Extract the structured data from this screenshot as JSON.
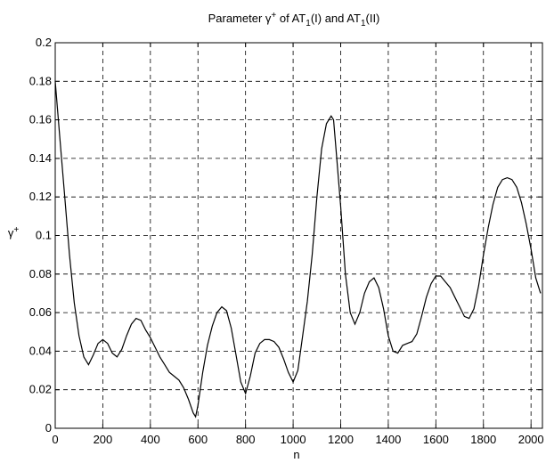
{
  "chart_data": {
    "type": "line",
    "title": {
      "prefix": "Parameter ",
      "symbol": "γ",
      "symbol_sup": "+",
      "middle": " of AT",
      "sub1": "1",
      "mid2": "(I) and AT",
      "sub2": "1",
      "suffix": "(II)"
    },
    "xlabel": "n",
    "ylabel": {
      "symbol": "γ",
      "sup": "+"
    },
    "xlim": [
      0,
      2048
    ],
    "ylim": [
      0,
      0.2
    ],
    "xticks": [
      0,
      200,
      400,
      600,
      800,
      1000,
      1200,
      1400,
      1600,
      1800,
      2000
    ],
    "yticks": [
      0,
      0.02,
      0.04,
      0.06,
      0.08,
      0.1,
      0.12,
      0.14,
      0.16,
      0.18,
      0.2
    ],
    "xtick_labels": [
      "0",
      "200",
      "400",
      "600",
      "800",
      "1000",
      "1200",
      "1400",
      "1600",
      "1800",
      "2000"
    ],
    "ytick_labels": [
      "0",
      "0.02",
      "0.04",
      "0.06",
      "0.08",
      "0.1",
      "0.12",
      "0.14",
      "0.16",
      "0.18",
      "0.2"
    ],
    "grid": true,
    "series": [
      {
        "points": [
          [
            0,
            0.18
          ],
          [
            20,
            0.15
          ],
          [
            40,
            0.12
          ],
          [
            60,
            0.09
          ],
          [
            80,
            0.065
          ],
          [
            100,
            0.048
          ],
          [
            120,
            0.037
          ],
          [
            140,
            0.033
          ],
          [
            160,
            0.038
          ],
          [
            180,
            0.044
          ],
          [
            200,
            0.046
          ],
          [
            220,
            0.044
          ],
          [
            240,
            0.039
          ],
          [
            260,
            0.037
          ],
          [
            280,
            0.041
          ],
          [
            300,
            0.048
          ],
          [
            320,
            0.054
          ],
          [
            340,
            0.057
          ],
          [
            360,
            0.056
          ],
          [
            380,
            0.051
          ],
          [
            400,
            0.047
          ],
          [
            420,
            0.042
          ],
          [
            440,
            0.037
          ],
          [
            460,
            0.033
          ],
          [
            480,
            0.029
          ],
          [
            500,
            0.027
          ],
          [
            520,
            0.025
          ],
          [
            540,
            0.021
          ],
          [
            560,
            0.015
          ],
          [
            580,
            0.008
          ],
          [
            590,
            0.006
          ],
          [
            600,
            0.012
          ],
          [
            620,
            0.029
          ],
          [
            640,
            0.043
          ],
          [
            660,
            0.053
          ],
          [
            680,
            0.06
          ],
          [
            700,
            0.063
          ],
          [
            720,
            0.061
          ],
          [
            740,
            0.052
          ],
          [
            760,
            0.038
          ],
          [
            780,
            0.024
          ],
          [
            800,
            0.018
          ],
          [
            820,
            0.027
          ],
          [
            840,
            0.039
          ],
          [
            860,
            0.044
          ],
          [
            880,
            0.046
          ],
          [
            900,
            0.046
          ],
          [
            920,
            0.045
          ],
          [
            940,
            0.042
          ],
          [
            960,
            0.036
          ],
          [
            980,
            0.029
          ],
          [
            1000,
            0.024
          ],
          [
            1020,
            0.03
          ],
          [
            1040,
            0.048
          ],
          [
            1060,
            0.066
          ],
          [
            1080,
            0.09
          ],
          [
            1100,
            0.12
          ],
          [
            1120,
            0.145
          ],
          [
            1140,
            0.158
          ],
          [
            1160,
            0.162
          ],
          [
            1170,
            0.16
          ],
          [
            1180,
            0.145
          ],
          [
            1200,
            0.115
          ],
          [
            1220,
            0.08
          ],
          [
            1240,
            0.06
          ],
          [
            1260,
            0.054
          ],
          [
            1280,
            0.06
          ],
          [
            1300,
            0.07
          ],
          [
            1320,
            0.076
          ],
          [
            1340,
            0.078
          ],
          [
            1360,
            0.073
          ],
          [
            1380,
            0.062
          ],
          [
            1400,
            0.048
          ],
          [
            1420,
            0.04
          ],
          [
            1440,
            0.039
          ],
          [
            1460,
            0.043
          ],
          [
            1480,
            0.044
          ],
          [
            1500,
            0.045
          ],
          [
            1520,
            0.049
          ],
          [
            1540,
            0.058
          ],
          [
            1560,
            0.068
          ],
          [
            1580,
            0.075
          ],
          [
            1600,
            0.079
          ],
          [
            1620,
            0.079
          ],
          [
            1640,
            0.076
          ],
          [
            1660,
            0.073
          ],
          [
            1680,
            0.068
          ],
          [
            1700,
            0.063
          ],
          [
            1720,
            0.058
          ],
          [
            1740,
            0.057
          ],
          [
            1760,
            0.062
          ],
          [
            1780,
            0.074
          ],
          [
            1800,
            0.09
          ],
          [
            1820,
            0.104
          ],
          [
            1840,
            0.116
          ],
          [
            1860,
            0.125
          ],
          [
            1880,
            0.129
          ],
          [
            1900,
            0.13
          ],
          [
            1920,
            0.129
          ],
          [
            1940,
            0.125
          ],
          [
            1960,
            0.117
          ],
          [
            1980,
            0.106
          ],
          [
            2000,
            0.093
          ],
          [
            2020,
            0.078
          ],
          [
            2040,
            0.07
          ]
        ]
      }
    ]
  }
}
